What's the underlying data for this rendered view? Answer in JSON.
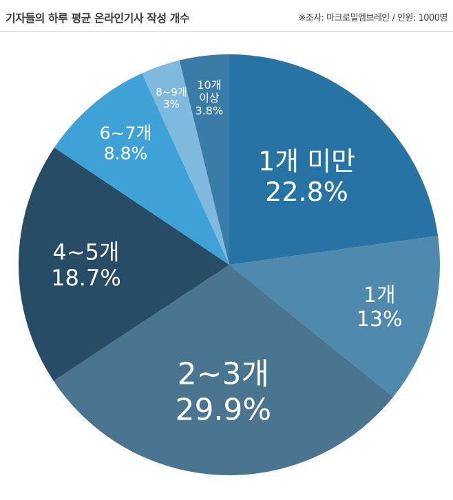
{
  "title": "기자들의 하루 평균 온라인기사 작성 개수",
  "source": "※조사: 마크로밀엠브레인 / 인원: 1000명",
  "chart_data": {
    "type": "pie",
    "slices": [
      {
        "label": "1개 미만",
        "value": 22.8,
        "value_label": "22.8%",
        "color": "#2673a4"
      },
      {
        "label": "1개",
        "value": 13,
        "value_label": "13%",
        "color": "#4f8aac"
      },
      {
        "label": "2~3개",
        "value": 29.9,
        "value_label": "29.9%",
        "color": "#4a7591"
      },
      {
        "label": "4~5개",
        "value": 18.7,
        "value_label": "18.7%",
        "color": "#264d65"
      },
      {
        "label": "6~7개",
        "value": 8.8,
        "value_label": "8.8%",
        "color": "#3fa2d6"
      },
      {
        "label": "8~9개",
        "value": 3,
        "value_label": "3%",
        "color": "#7fbade"
      },
      {
        "label": "10개 이상",
        "value": 3.8,
        "value_label": "3.8%",
        "color": "#3a7ca8"
      }
    ]
  }
}
